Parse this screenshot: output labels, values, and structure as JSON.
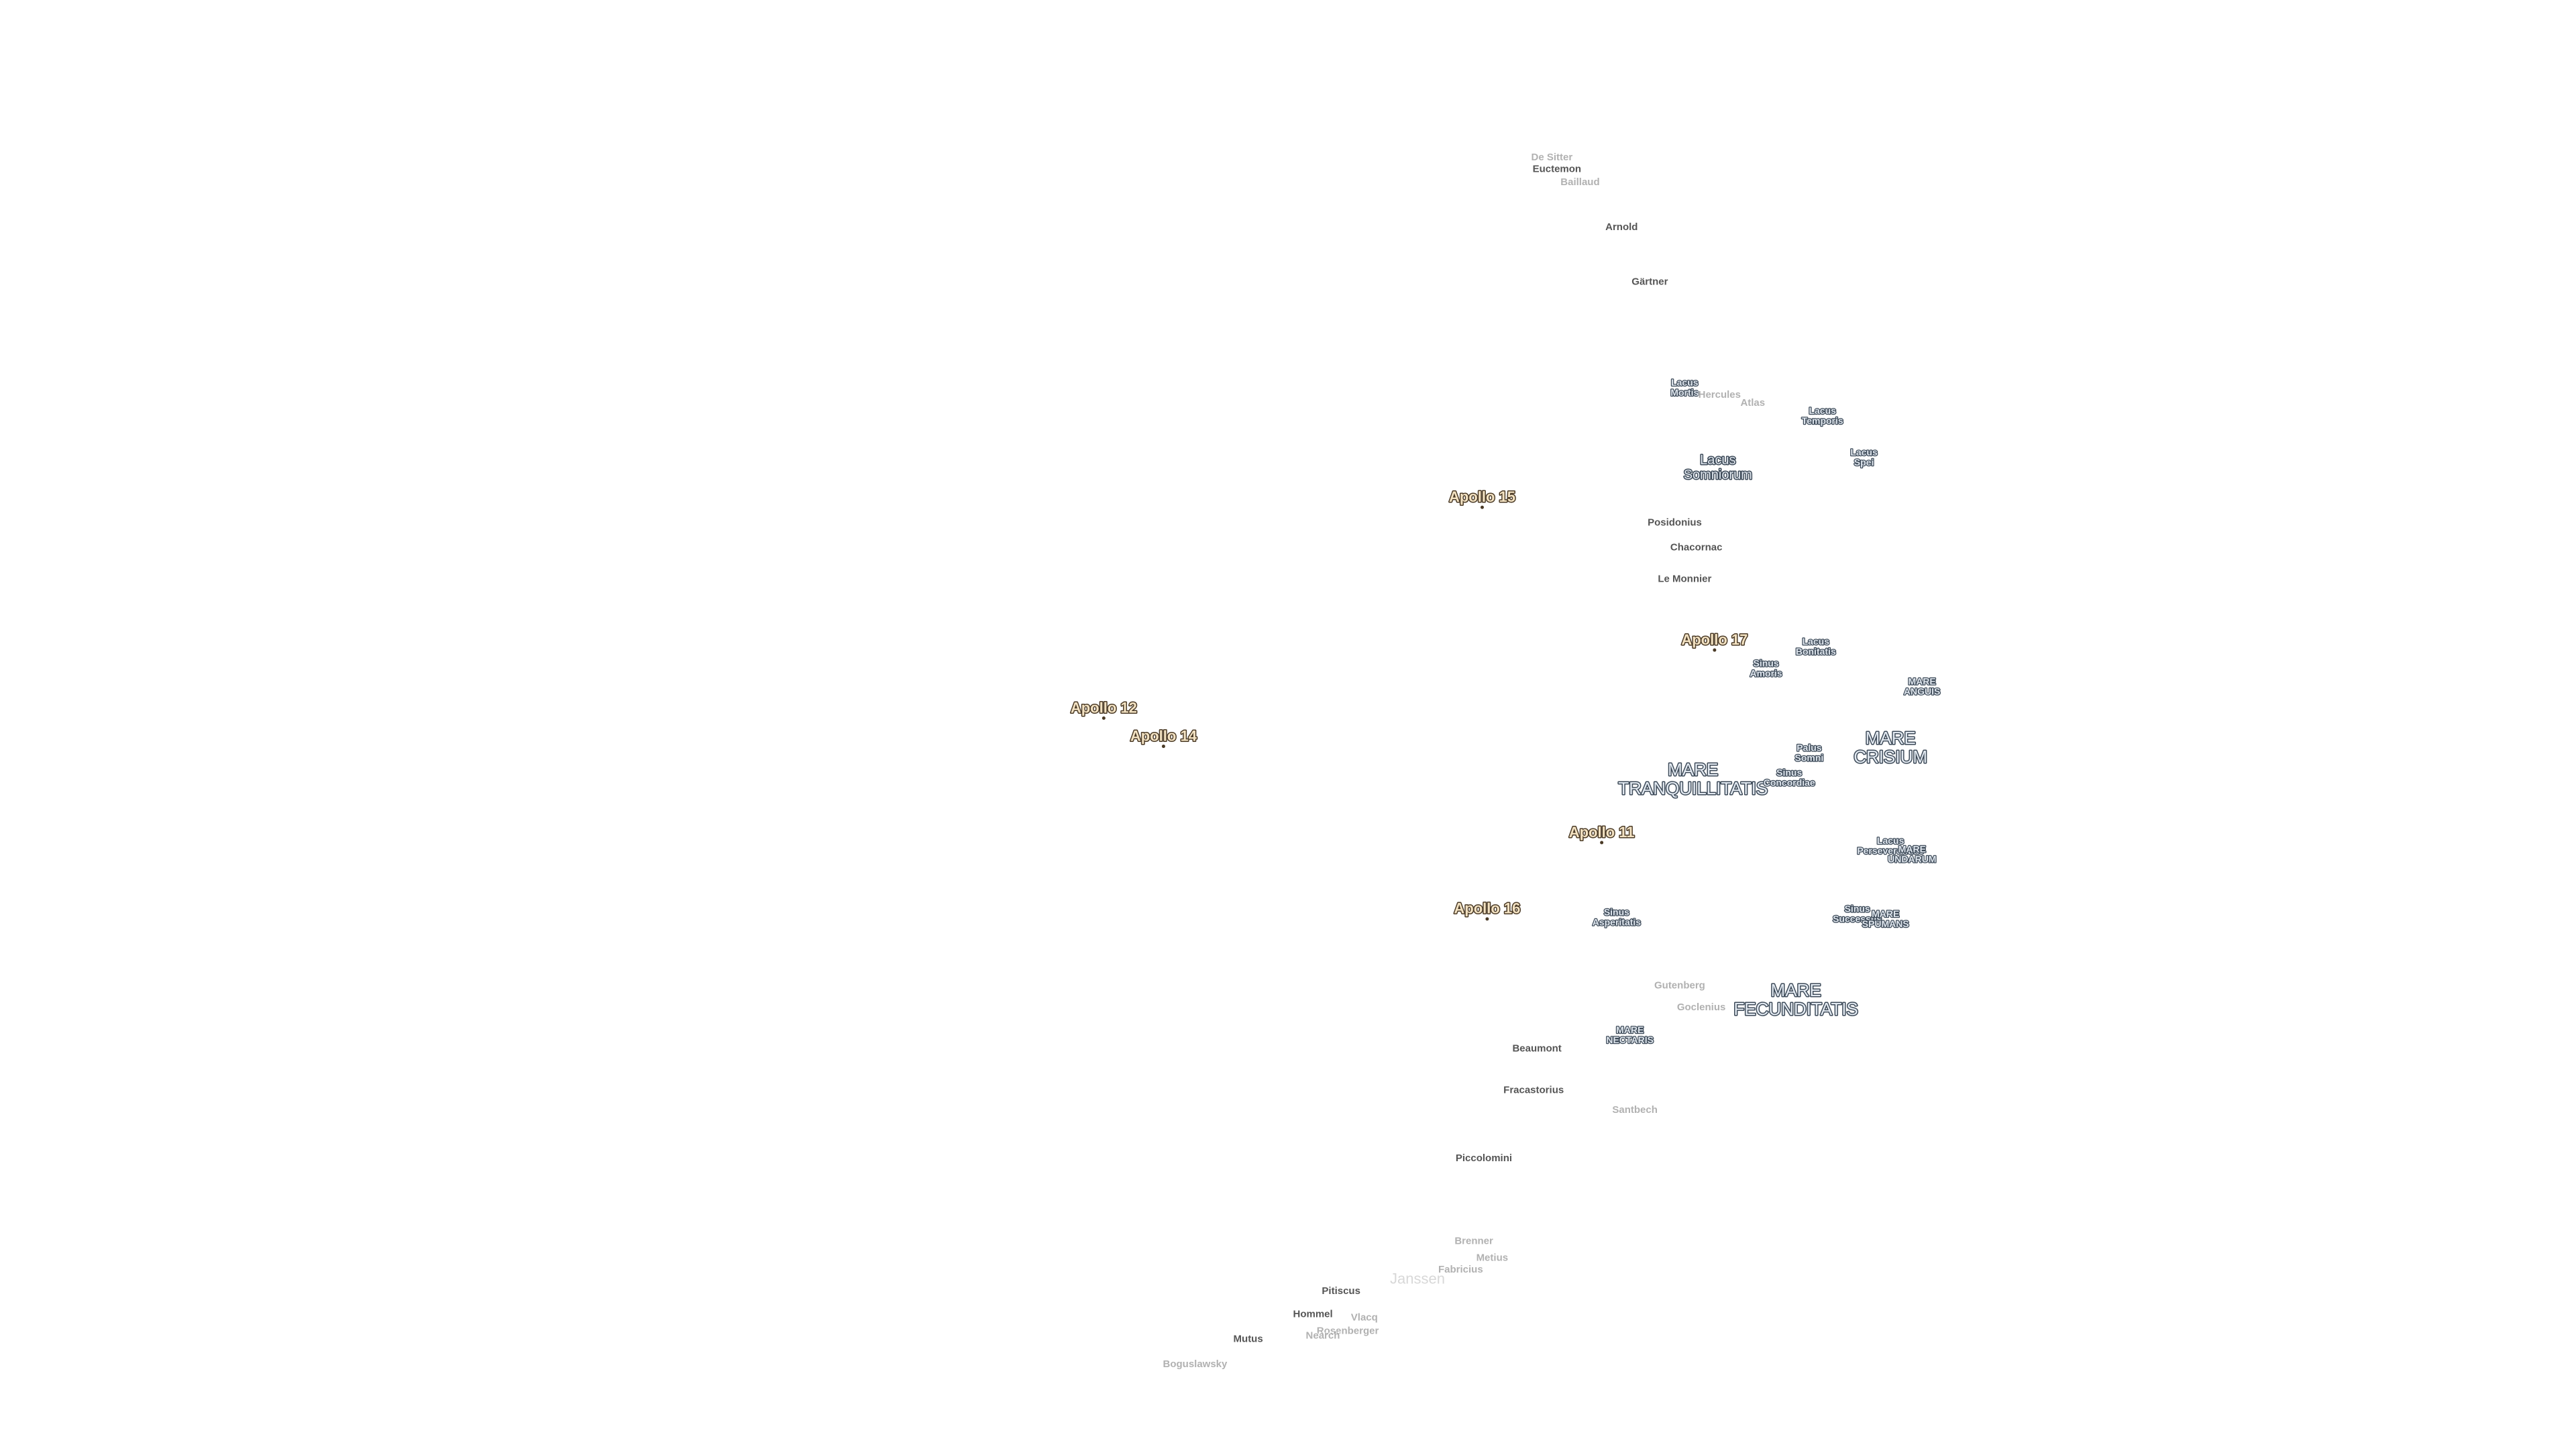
{
  "labels": [
    {
      "lines": [
        "De Sitter"
      ],
      "kind": "crater",
      "faded": true
    },
    {
      "lines": [
        "Euctemon"
      ],
      "kind": "crater",
      "faded": false
    },
    {
      "lines": [
        "Baillaud"
      ],
      "kind": "crater",
      "faded": true
    },
    {
      "lines": [
        "Arnold"
      ],
      "kind": "crater",
      "faded": false
    },
    {
      "lines": [
        "Gärtner"
      ],
      "kind": "crater",
      "faded": false
    },
    {
      "lines": [
        "Lacus",
        "Mortis"
      ],
      "kind": "feature",
      "faded": false
    },
    {
      "lines": [
        "Hercules"
      ],
      "kind": "crater",
      "faded": true
    },
    {
      "lines": [
        "Atlas"
      ],
      "kind": "crater",
      "faded": true
    },
    {
      "lines": [
        "Lacus",
        "Temporis"
      ],
      "kind": "feature",
      "faded": false
    },
    {
      "lines": [
        "Lacus",
        "Spei"
      ],
      "kind": "feature",
      "faded": false
    },
    {
      "lines": [
        "Lacus",
        "Somniorum"
      ],
      "kind": "lake",
      "faded": false
    },
    {
      "lines": [
        "Apollo 15"
      ],
      "kind": "apollo",
      "faded": false
    },
    {
      "lines": [
        "Posidonius"
      ],
      "kind": "crater",
      "faded": false
    },
    {
      "lines": [
        "Chacornac"
      ],
      "kind": "crater",
      "faded": false
    },
    {
      "lines": [
        "Le Monnier"
      ],
      "kind": "crater",
      "faded": false
    },
    {
      "lines": [
        "Apollo 17"
      ],
      "kind": "apollo",
      "faded": false
    },
    {
      "lines": [
        "Lacus",
        "Bonitatis"
      ],
      "kind": "feature",
      "faded": false
    },
    {
      "lines": [
        "Sinus",
        "Amoris"
      ],
      "kind": "feature",
      "faded": false
    },
    {
      "lines": [
        "MARE",
        "ANGUIS"
      ],
      "kind": "feature",
      "faded": false
    },
    {
      "lines": [
        "Apollo 12"
      ],
      "kind": "apollo",
      "faded": false
    },
    {
      "lines": [
        "Apollo 14"
      ],
      "kind": "apollo",
      "faded": false
    },
    {
      "lines": [
        "Palus",
        "Somni"
      ],
      "kind": "feature",
      "faded": false
    },
    {
      "lines": [
        "MARE",
        "CRISIUM"
      ],
      "kind": "mare",
      "faded": false
    },
    {
      "lines": [
        "MARE",
        "TRANQUILLITATIS"
      ],
      "kind": "mare",
      "faded": false
    },
    {
      "lines": [
        "Sinus",
        "Concordiae"
      ],
      "kind": "feature",
      "faded": false
    },
    {
      "lines": [
        "Apollo 11"
      ],
      "kind": "apollo",
      "faded": false
    },
    {
      "lines": [
        "Lacus",
        "Perseverantiae"
      ],
      "kind": "feature",
      "faded": false
    },
    {
      "lines": [
        "MARE",
        "UNDARUM"
      ],
      "kind": "feature",
      "faded": false
    },
    {
      "lines": [
        "Apollo 16"
      ],
      "kind": "apollo",
      "faded": false
    },
    {
      "lines": [
        "Sinus",
        "Asperitatis"
      ],
      "kind": "feature",
      "faded": false
    },
    {
      "lines": [
        "Sinus",
        "Successus"
      ],
      "kind": "feature",
      "faded": false
    },
    {
      "lines": [
        "MARE",
        "SPUMANS"
      ],
      "kind": "feature",
      "faded": false
    },
    {
      "lines": [
        "Gutenberg"
      ],
      "kind": "crater",
      "faded": true
    },
    {
      "lines": [
        "Goclenius"
      ],
      "kind": "crater",
      "faded": true
    },
    {
      "lines": [
        "MARE",
        "FECUNDITATIS"
      ],
      "kind": "mare",
      "faded": false
    },
    {
      "lines": [
        "MARE",
        "NECTARIS"
      ],
      "kind": "feature",
      "faded": false
    },
    {
      "lines": [
        "Beaumont"
      ],
      "kind": "crater",
      "faded": false
    },
    {
      "lines": [
        "Fracastorius"
      ],
      "kind": "crater",
      "faded": false
    },
    {
      "lines": [
        "Santbech"
      ],
      "kind": "crater",
      "faded": true
    },
    {
      "lines": [
        "Piccolomini"
      ],
      "kind": "crater",
      "faded": false
    },
    {
      "lines": [
        "Brenner"
      ],
      "kind": "crater",
      "faded": true
    },
    {
      "lines": [
        "Metius"
      ],
      "kind": "crater",
      "faded": true
    },
    {
      "lines": [
        "Fabricius"
      ],
      "kind": "crater",
      "faded": true
    },
    {
      "lines": [
        "Janssen"
      ],
      "kind": "bigcrater",
      "faded": true
    },
    {
      "lines": [
        "Pitiscus"
      ],
      "kind": "crater",
      "faded": false
    },
    {
      "lines": [
        "Hommel"
      ],
      "kind": "crater",
      "faded": false
    },
    {
      "lines": [
        "Vlacq"
      ],
      "kind": "crater",
      "faded": true
    },
    {
      "lines": [
        "Rosenberger"
      ],
      "kind": "crater",
      "faded": true
    },
    {
      "lines": [
        "Nearch"
      ],
      "kind": "crater",
      "faded": true
    },
    {
      "lines": [
        "Mutus"
      ],
      "kind": "crater",
      "faded": false
    },
    {
      "lines": [
        "Boguslawsky"
      ],
      "kind": "crater",
      "faded": true
    }
  ]
}
